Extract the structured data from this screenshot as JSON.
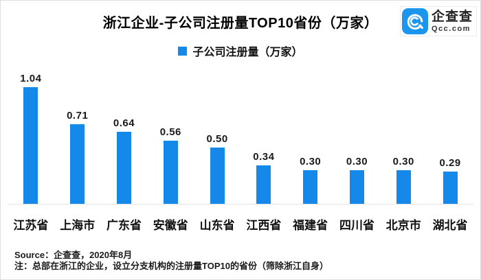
{
  "header": {
    "title": "浙江企业-子公司注册量TOP10省份（万家）",
    "logo": {
      "name": "企查查",
      "domain": "Qcc.com",
      "icon": "qcc-swirl-icon",
      "icon_bg_color": "#1b96ee"
    }
  },
  "legend": {
    "label": "子公司注册量（万家）",
    "swatch_color": "#1589e9"
  },
  "chart_data": {
    "type": "bar",
    "title": "浙江企业-子公司注册量TOP10省份（万家）",
    "legend_entries": [
      "子公司注册量（万家）"
    ],
    "legend_position": "top",
    "categories": [
      "江苏省",
      "上海市",
      "广东省",
      "安徽省",
      "山东省",
      "江西省",
      "福建省",
      "四川省",
      "北京市",
      "湖北省"
    ],
    "values": [
      1.04,
      0.71,
      0.64,
      0.56,
      0.5,
      0.34,
      0.3,
      0.3,
      0.3,
      0.29
    ],
    "value_labels": [
      "1.04",
      "0.71",
      "0.64",
      "0.56",
      "0.50",
      "0.34",
      "0.30",
      "0.30",
      "0.30",
      "0.29"
    ],
    "bar_color": "#1589e9",
    "ylabel": "",
    "xlabel": "",
    "ylim": [
      0,
      1.2
    ],
    "grid": false,
    "baseline_color": "#e3e3e3"
  },
  "footer": {
    "source": "Source：企查查，2020年8月",
    "note": "注：总部在浙江的企业，设立分支机构的注册量TOP10的省份（筛除浙江自身）"
  }
}
